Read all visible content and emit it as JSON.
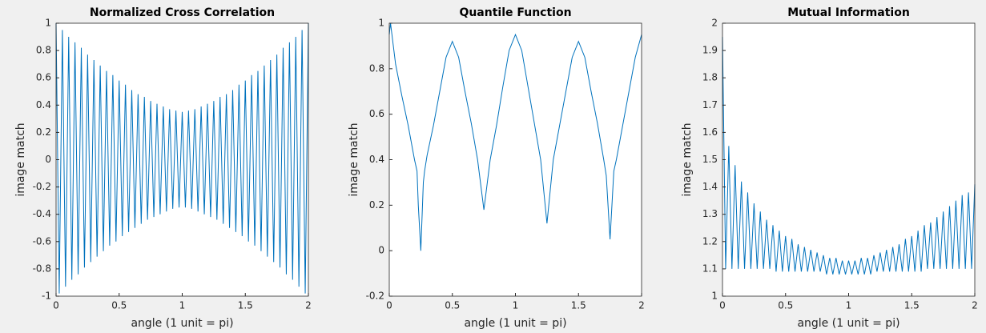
{
  "chart_data": [
    {
      "type": "line",
      "title": "Normalized Cross Correlation",
      "xlabel": "angle (1 unit = pi)",
      "ylabel": "image match",
      "color": "#0072bd",
      "xlim": [
        0,
        2
      ],
      "xticks": [
        0,
        0.5,
        1,
        1.5,
        2
      ],
      "ylim": [
        -1,
        1
      ],
      "yticks": [
        -1,
        -0.8,
        -0.6,
        -0.4,
        -0.2,
        0,
        0.2,
        0.4,
        0.6,
        0.8,
        1
      ],
      "x": [
        0,
        0.025,
        0.05,
        0.075,
        0.1,
        0.125,
        0.15,
        0.175,
        0.2,
        0.225,
        0.25,
        0.275,
        0.3,
        0.325,
        0.35,
        0.375,
        0.4,
        0.425,
        0.45,
        0.475,
        0.5,
        0.525,
        0.55,
        0.575,
        0.6,
        0.625,
        0.65,
        0.675,
        0.7,
        0.725,
        0.75,
        0.775,
        0.8,
        0.825,
        0.85,
        0.875,
        0.9,
        0.925,
        0.95,
        0.975,
        1,
        1.025,
        1.05,
        1.075,
        1.1,
        1.125,
        1.15,
        1.175,
        1.2,
        1.225,
        1.25,
        1.275,
        1.3,
        1.325,
        1.35,
        1.375,
        1.4,
        1.425,
        1.45,
        1.475,
        1.5,
        1.525,
        1.55,
        1.575,
        1.6,
        1.625,
        1.65,
        1.675,
        1.7,
        1.725,
        1.75,
        1.775,
        1.8,
        1.825,
        1.85,
        1.875,
        1.9,
        1.925,
        1.95,
        1.975,
        2
      ],
      "values": [
        1.0,
        -0.98,
        0.95,
        -0.93,
        0.9,
        -0.88,
        0.86,
        -0.84,
        0.82,
        -0.79,
        0.77,
        -0.75,
        0.73,
        -0.71,
        0.69,
        -0.67,
        0.65,
        -0.63,
        0.62,
        -0.6,
        0.58,
        -0.56,
        0.55,
        -0.53,
        0.51,
        -0.5,
        0.48,
        -0.47,
        0.46,
        -0.44,
        0.43,
        -0.42,
        0.41,
        -0.4,
        0.39,
        -0.38,
        0.37,
        -0.36,
        0.36,
        -0.35,
        0.35,
        -0.35,
        0.36,
        -0.36,
        0.37,
        -0.38,
        0.39,
        -0.4,
        0.41,
        -0.42,
        0.43,
        -0.44,
        0.46,
        -0.47,
        0.48,
        -0.5,
        0.51,
        -0.53,
        0.55,
        -0.56,
        0.58,
        -0.6,
        0.62,
        -0.63,
        0.65,
        -0.67,
        0.69,
        -0.71,
        0.73,
        -0.75,
        0.77,
        -0.79,
        0.82,
        -0.84,
        0.86,
        -0.88,
        0.9,
        -0.93,
        0.95,
        -0.98,
        1.0
      ]
    },
    {
      "type": "line",
      "title": "Quantile Function",
      "xlabel": "angle (1 unit = pi)",
      "ylabel": "image match",
      "color": "#0072bd",
      "xlim": [
        0,
        2
      ],
      "xticks": [
        0,
        0.5,
        1,
        1.5,
        2
      ],
      "ylim": [
        -0.2,
        1
      ],
      "yticks": [
        -0.2,
        0,
        0.2,
        0.4,
        0.6,
        0.8,
        1
      ],
      "x": [
        0,
        0.01,
        0.05,
        0.1,
        0.15,
        0.2,
        0.22,
        0.23,
        0.25,
        0.27,
        0.28,
        0.3,
        0.35,
        0.4,
        0.45,
        0.5,
        0.55,
        0.6,
        0.65,
        0.7,
        0.75,
        0.8,
        0.85,
        0.9,
        0.95,
        1,
        1.05,
        1.1,
        1.15,
        1.2,
        1.25,
        1.3,
        1.35,
        1.4,
        1.45,
        1.5,
        1.55,
        1.6,
        1.65,
        1.7,
        1.72,
        1.75,
        1.78,
        1.8,
        1.85,
        1.9,
        1.95,
        2
      ],
      "values": [
        0.95,
        1,
        0.82,
        0.68,
        0.55,
        0.4,
        0.35,
        0.2,
        0,
        0.3,
        0.35,
        0.42,
        0.55,
        0.7,
        0.85,
        0.92,
        0.85,
        0.7,
        0.56,
        0.4,
        0.18,
        0.4,
        0.55,
        0.72,
        0.88,
        0.95,
        0.88,
        0.72,
        0.56,
        0.4,
        0.12,
        0.4,
        0.55,
        0.7,
        0.85,
        0.92,
        0.85,
        0.7,
        0.56,
        0.4,
        0.33,
        0.05,
        0.35,
        0.4,
        0.55,
        0.7,
        0.85,
        0.95
      ]
    },
    {
      "type": "line",
      "title": "Mutual Information",
      "xlabel": "angle (1 unit = pi)",
      "ylabel": "image match",
      "color": "#0072bd",
      "xlim": [
        0,
        2
      ],
      "xticks": [
        0,
        0.5,
        1,
        1.5,
        2
      ],
      "ylim": [
        1,
        2
      ],
      "yticks": [
        1,
        1.1,
        1.2,
        1.3,
        1.4,
        1.5,
        1.6,
        1.7,
        1.8,
        1.9,
        2
      ],
      "x": [
        0,
        0.025,
        0.05,
        0.075,
        0.1,
        0.125,
        0.15,
        0.175,
        0.2,
        0.225,
        0.25,
        0.275,
        0.3,
        0.325,
        0.35,
        0.375,
        0.4,
        0.425,
        0.45,
        0.475,
        0.5,
        0.525,
        0.55,
        0.575,
        0.6,
        0.625,
        0.65,
        0.675,
        0.7,
        0.725,
        0.75,
        0.775,
        0.8,
        0.825,
        0.85,
        0.875,
        0.9,
        0.925,
        0.95,
        0.975,
        1,
        1.025,
        1.05,
        1.075,
        1.1,
        1.125,
        1.15,
        1.175,
        1.2,
        1.225,
        1.25,
        1.275,
        1.3,
        1.325,
        1.35,
        1.375,
        1.4,
        1.425,
        1.45,
        1.475,
        1.5,
        1.525,
        1.55,
        1.575,
        1.6,
        1.625,
        1.65,
        1.675,
        1.7,
        1.725,
        1.75,
        1.775,
        1.8,
        1.825,
        1.85,
        1.875,
        1.9,
        1.925,
        1.95,
        1.975,
        2
      ],
      "values": [
        1.95,
        1.1,
        1.55,
        1.1,
        1.48,
        1.1,
        1.42,
        1.1,
        1.38,
        1.1,
        1.34,
        1.1,
        1.31,
        1.1,
        1.28,
        1.1,
        1.26,
        1.09,
        1.24,
        1.09,
        1.22,
        1.09,
        1.21,
        1.09,
        1.19,
        1.09,
        1.18,
        1.09,
        1.17,
        1.09,
        1.16,
        1.09,
        1.15,
        1.08,
        1.14,
        1.08,
        1.14,
        1.08,
        1.13,
        1.08,
        1.13,
        1.08,
        1.13,
        1.08,
        1.14,
        1.08,
        1.14,
        1.08,
        1.15,
        1.09,
        1.16,
        1.09,
        1.17,
        1.09,
        1.18,
        1.09,
        1.19,
        1.09,
        1.21,
        1.09,
        1.22,
        1.09,
        1.24,
        1.09,
        1.26,
        1.1,
        1.27,
        1.1,
        1.29,
        1.1,
        1.31,
        1.1,
        1.33,
        1.1,
        1.35,
        1.1,
        1.37,
        1.1,
        1.38,
        1.1,
        1.41
      ]
    }
  ]
}
